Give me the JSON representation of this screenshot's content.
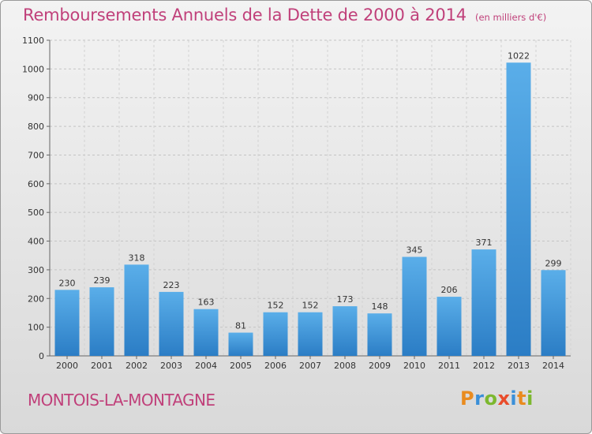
{
  "header": {
    "title": "Remboursements Annuels de la Dette de 2000 à 2014",
    "subtitle": "(en milliers d'€)"
  },
  "footer": {
    "commune": "MONTOIS-LA-MONTAGNE",
    "logo_text": "Proxiti",
    "logo_letters": [
      "P",
      "r",
      "o",
      "x",
      "i",
      "t",
      "i"
    ],
    "logo_colors": [
      "#e98b1f",
      "#3a8fd8",
      "#7cb82f",
      "#e94c2b",
      "#3a8fd8",
      "#e98b1f",
      "#7cb82f"
    ]
  },
  "chart_data": {
    "type": "bar",
    "title": "Remboursements Annuels de la Dette de 2000 à 2014",
    "subtitle": "(en milliers d'€)",
    "xlabel": "",
    "ylabel": "",
    "categories": [
      "2000",
      "2001",
      "2002",
      "2003",
      "2004",
      "2005",
      "2006",
      "2007",
      "2008",
      "2009",
      "2010",
      "2011",
      "2012",
      "2013",
      "2014"
    ],
    "values": [
      230,
      239,
      318,
      223,
      163,
      81,
      152,
      152,
      173,
      148,
      345,
      206,
      371,
      1022,
      299
    ],
    "ylim": [
      0,
      1100
    ],
    "yticks": [
      0,
      100,
      200,
      300,
      400,
      500,
      600,
      700,
      800,
      900,
      1000,
      1100
    ],
    "grid": true,
    "bar_color": "#3d95dc",
    "bar_color_dark": "#2a7cc4"
  }
}
